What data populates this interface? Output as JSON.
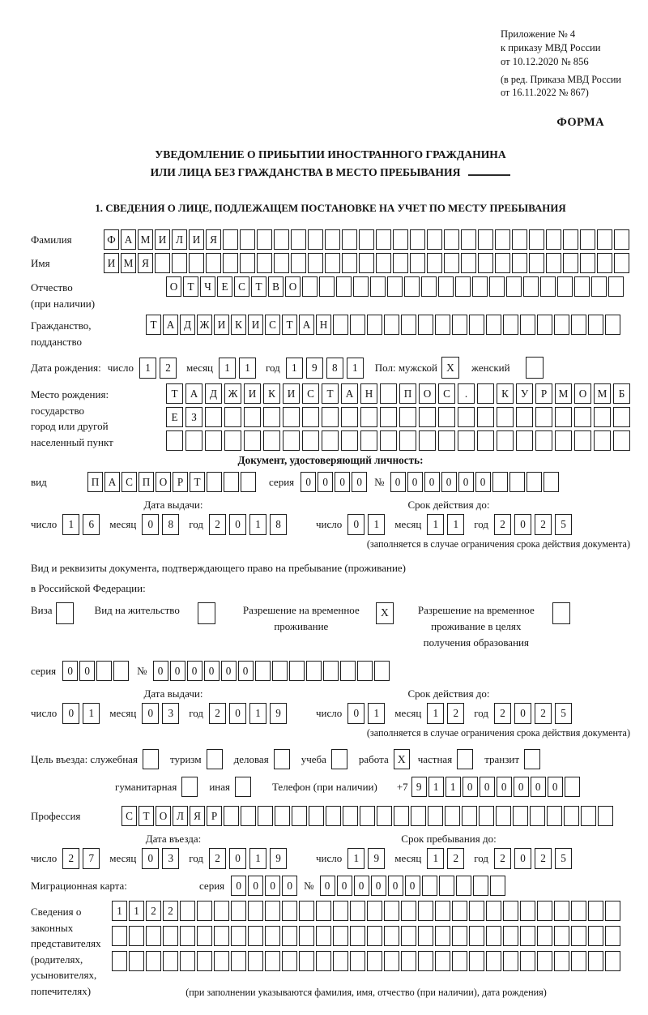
{
  "header": {
    "appendix": [
      "Приложение № 4",
      "к приказу МВД России",
      "от 10.12.2020 № 856"
    ],
    "edition": [
      "(в ред. Приказа МВД России",
      "от 16.11.2022 № 867)"
    ],
    "form_label": "ФОРМА",
    "title_line1": "УВЕДОМЛЕНИЕ О ПРИБЫТИИ ИНОСТРАННОГО ГРАЖДАНИНА",
    "title_line2": "ИЛИ ЛИЦА БЕЗ ГРАЖДАНСТВА В МЕСТО ПРЕБЫВАНИЯ",
    "section1_heading": "1. СВЕДЕНИЯ О ЛИЦЕ, ПОДЛЕЖАЩЕМ ПОСТАНОВКЕ НА УЧЕТ ПО МЕСТУ ПРЕБЫВАНИЯ"
  },
  "words": {
    "day": "число",
    "month": "месяц",
    "year": "год"
  },
  "person": {
    "surname": {
      "label": "Фамилия",
      "chars": "ФАМИЛИЯ",
      "count": 31
    },
    "name": {
      "label": "Имя",
      "chars": "ИМЯ",
      "count": 31
    },
    "patronymic": {
      "label_line1": "Отчество",
      "label_line2": "(при наличии)",
      "chars": "ОТЧЕСТВО",
      "count": 27
    },
    "citizenship": {
      "label_line1": "Гражданство,",
      "label_line2": "подданство",
      "chars": "ТАДЖИКИСТАН",
      "count": 28
    },
    "birth": {
      "label": "Дата рождения:",
      "date": {
        "day": "12",
        "month": "11",
        "year": "1981"
      },
      "sex_label": "Пол: мужской",
      "male_box": {
        "chars": "X",
        "count": 1
      },
      "female_label": "женский",
      "female_box": {
        "chars": "",
        "count": 1
      }
    },
    "birthplace": {
      "label_line1": "Место рождения:",
      "label_line2": "государство",
      "label_line3": "город или другой",
      "label_line4": "населенный пункт",
      "row1": {
        "chars": [
          "Т",
          "А",
          "Д",
          "Ж",
          "И",
          "К",
          "И",
          "С",
          "Т",
          "А",
          "Н",
          "",
          "П",
          "О",
          "С",
          ".",
          "",
          "К",
          "У",
          "Р",
          "М",
          "О",
          "М",
          "Б"
        ],
        "count": 24
      },
      "row2": {
        "chars": "ЕЗ",
        "count": 24
      },
      "row3": {
        "chars": "",
        "count": 24
      }
    }
  },
  "identity_doc": {
    "heading": "Документ, удостоверяющий личность:",
    "kind_label": "вид",
    "kind": {
      "chars": "ПАСПОРТ",
      "count": 10
    },
    "series_label": "серия",
    "series": {
      "chars": "0000",
      "count": 4
    },
    "number_label": "№",
    "number": {
      "chars": "000000",
      "count": 10
    },
    "issue_header": "Дата выдачи:",
    "expiry_header": "Срок действия до:",
    "issue": {
      "day": "16",
      "month": "08",
      "year": "2018"
    },
    "expiry": {
      "day": "01",
      "month": "11",
      "year": "2025"
    },
    "note": "(заполняется в случае ограничения срока действия документа)"
  },
  "permit": {
    "para_line1": "Вид и реквизиты документа, подтверждающего право на пребывание (проживание)",
    "para_line2": "в Российской Федерации:",
    "visa_label": "Виза",
    "visa_box": {
      "chars": "",
      "count": 1
    },
    "residence_label": "Вид на жительство",
    "residence_box": {
      "chars": "",
      "count": 1
    },
    "rvp_line1": "Разрешение на временное",
    "rvp_line2": "проживание",
    "rvp_box": {
      "chars": "X",
      "count": 1
    },
    "rvp_edu_line1": "Разрешение на временное",
    "rvp_edu_line2": "проживание в целях",
    "rvp_edu_line3": "получения образования",
    "rvp_edu_box": {
      "chars": "",
      "count": 1
    },
    "series_label": "серия",
    "series": {
      "chars": "00",
      "count": 4
    },
    "number_label": "№",
    "number": {
      "chars": "000000",
      "count": 14
    },
    "issue_header": "Дата выдачи:",
    "expiry_header": "Срок действия до:",
    "issue": {
      "day": "01",
      "month": "03",
      "year": "2019"
    },
    "expiry": {
      "day": "01",
      "month": "12",
      "year": "2025"
    },
    "note": "(заполняется в случае ограничения срока действия документа)"
  },
  "purpose": {
    "lead_label": "Цель въезда: служебная",
    "lead_box": {
      "chars": "",
      "count": 1
    },
    "tourism_label": "туризм",
    "tourism_box": {
      "chars": "",
      "count": 1
    },
    "business_label": "деловая",
    "business_box": {
      "chars": "",
      "count": 1
    },
    "study_label": "учеба",
    "study_box": {
      "chars": "",
      "count": 1
    },
    "work_label": "работа",
    "work_box": {
      "chars": "X",
      "count": 1
    },
    "private_label": "частная",
    "private_box": {
      "chars": "",
      "count": 1
    },
    "transit_label": "транзит",
    "transit_box": {
      "chars": "",
      "count": 1
    },
    "humanitarian_label": "гуманитарная",
    "humanitarian_box": {
      "chars": "",
      "count": 1
    },
    "other_label": "иная",
    "other_box": {
      "chars": "",
      "count": 1
    },
    "phone_label": "Телефон (при наличии)",
    "phone_prefix": "+7",
    "phone": {
      "chars": "911000000",
      "count": 10
    }
  },
  "profession": {
    "label": "Профессия",
    "chars": "СТОЛЯР",
    "count": 29
  },
  "entry": {
    "date_header": "Дата въезда:",
    "stay_header": "Срок пребывания до:",
    "date": {
      "day": "27",
      "month": "03",
      "year": "2019"
    },
    "stay": {
      "day": "19",
      "month": "12",
      "year": "2025"
    }
  },
  "migration_card": {
    "label": "Миграционная карта:",
    "series_label": "серия",
    "series": {
      "chars": "0000",
      "count": 4
    },
    "number_label": "№",
    "number": {
      "chars": "000000",
      "count": 11
    }
  },
  "representatives": {
    "label_line1": "Сведения о",
    "label_line2": "законных",
    "label_line3": "представителях",
    "label_line4": "(родителях,",
    "label_line5": "усыновителях,",
    "label_line6": "попечителях)",
    "row1": {
      "chars": "1122",
      "count": 30
    },
    "row2": {
      "chars": "",
      "count": 30
    },
    "row3": {
      "chars": "",
      "count": 30
    },
    "note": "(при заполнении указываются фамилия, имя, отчество (при наличии), дата рождения)"
  }
}
